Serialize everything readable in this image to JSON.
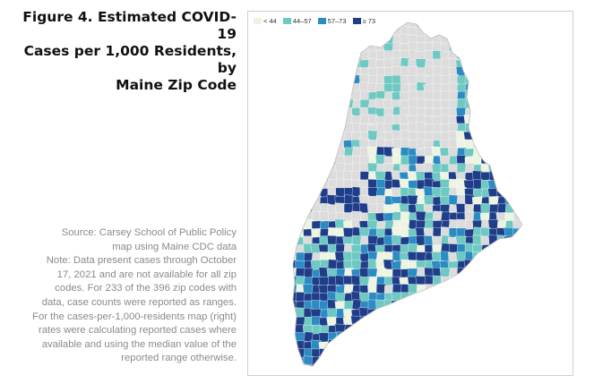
{
  "figure": {
    "title_lines": [
      "Figure 4. Estimated COVID-19",
      "Cases per 1,000 Residents, by",
      "Maine Zip Code"
    ]
  },
  "notes": {
    "lines": [
      "Source: Carsey School of Public Policy",
      "map using Maine CDC data",
      "Note: Data present cases through October",
      "17, 2021 and are not available for all zip",
      "codes. For 233 of the 396 zip codes with",
      "data, case counts were reported as ranges.",
      "For the cases-per-1,000-residents map (right)",
      "rates were calculating reported cases where",
      "available and using the median value of the",
      "reported range otherwise."
    ]
  },
  "legend": {
    "items": [
      {
        "label": "< 44",
        "color": "#eef4e2"
      },
      {
        "label": "44–57",
        "color": "#6ec9c2"
      },
      {
        "label": "57–73",
        "color": "#2b8cc4"
      },
      {
        "label": "≥ 73",
        "color": "#1f3e8a"
      }
    ],
    "no_data_color": "#dcdcdc"
  }
}
